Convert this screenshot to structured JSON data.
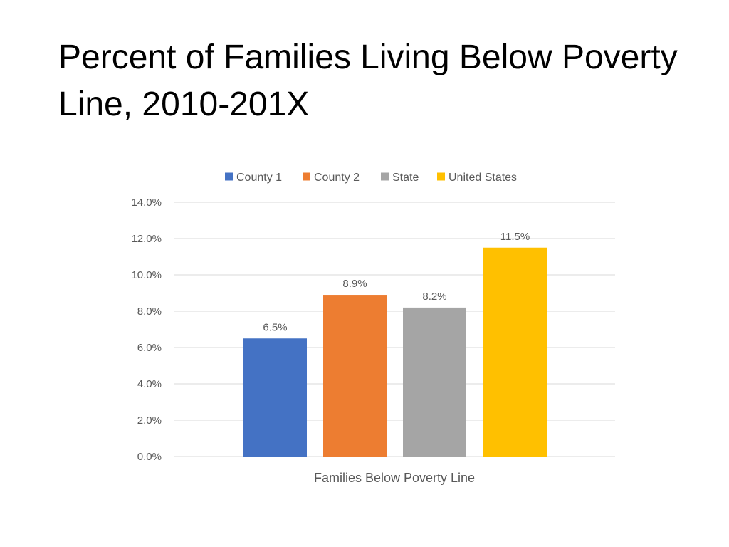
{
  "title": "Percent of Families Living Below Poverty Line, 2010-201X",
  "chart_data": {
    "type": "bar",
    "title": "",
    "categories": [
      "Families Below Poverty Line"
    ],
    "series": [
      {
        "name": "County 1",
        "values": [
          6.5
        ],
        "color": "#4472C4",
        "label": "6.5%"
      },
      {
        "name": "County 2",
        "values": [
          8.9
        ],
        "color": "#ED7D31",
        "label": "8.9%"
      },
      {
        "name": "State",
        "values": [
          8.2
        ],
        "color": "#A5A5A5",
        "label": "8.2%"
      },
      {
        "name": "United States",
        "values": [
          11.5
        ],
        "color": "#FFC000",
        "label": "11.5%"
      }
    ],
    "xlabel": "Families Below Poverty Line",
    "ylabel": "",
    "ylim": [
      0,
      14
    ],
    "yticks": [
      0,
      2,
      4,
      6,
      8,
      10,
      12,
      14
    ],
    "ytick_labels": [
      "0.0%",
      "2.0%",
      "4.0%",
      "6.0%",
      "8.0%",
      "10.0%",
      "12.0%",
      "14.0%"
    ],
    "grid": true,
    "legend_position": "top"
  }
}
